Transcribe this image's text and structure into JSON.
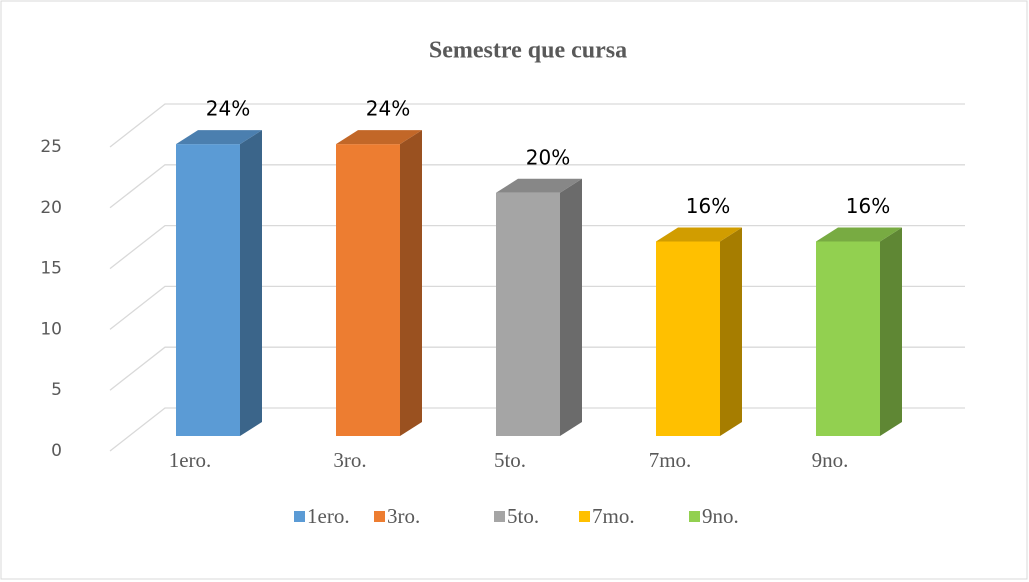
{
  "chart_data": {
    "type": "bar3d",
    "title": "Semestre que cursa",
    "categories": [
      "1ero.",
      "3ro.",
      "5to.",
      "7mo.",
      "9no."
    ],
    "values": [
      24,
      24,
      20,
      16,
      16
    ],
    "value_labels": [
      "24%",
      "24%",
      "20%",
      "16%",
      "16%"
    ],
    "colors": [
      "#5b9bd5",
      "#ed7d31",
      "#a5a5a5",
      "#ffc000",
      "#92d050"
    ],
    "ylim": [
      0,
      25
    ],
    "yticks": [
      0,
      5,
      10,
      15,
      20,
      25
    ],
    "grid": true,
    "legend": "bottom"
  }
}
